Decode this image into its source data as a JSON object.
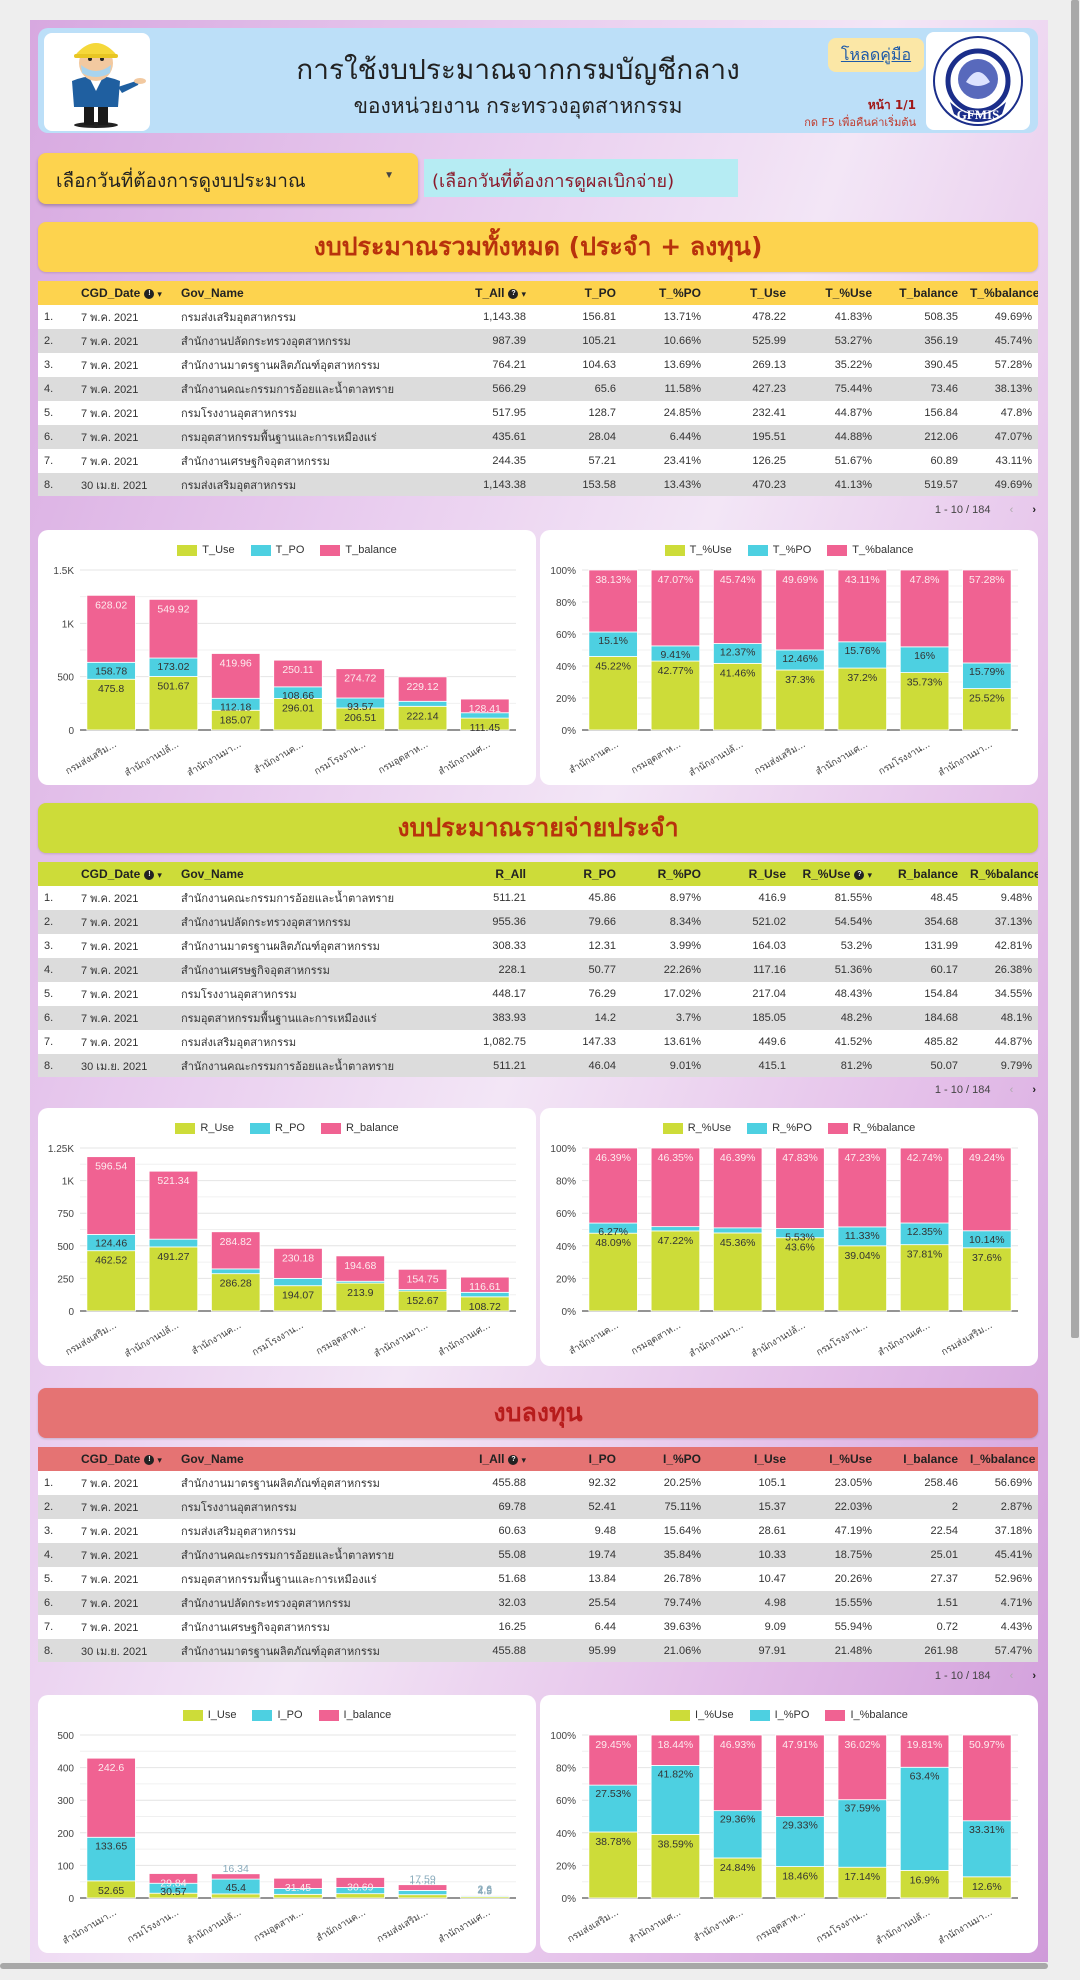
{
  "header": {
    "title": "การใช้งบประมาณจากกรมบัญชีกลาง",
    "subtitle": "ของหน่วยงาน กระทรวงอุตสาหกรรม",
    "manual_link": "โหลดคู่มือ",
    "page_indicator": "หน้า 1/1",
    "reset_hint": "กด F5 เพื่อคืนค่าเริ่มต้น",
    "logo_text": "GFMIS",
    "logo_ring_text": "GOVERNMENT FISCAL MANAGEMENT INFORMATION SYSTEM"
  },
  "filters": {
    "date_selector_label": "เลือกวันที่ต้องการดูงบประมาณ",
    "disbursement_label": "(เลือกวันที่ต้องการดูผลเบิกจ่าย)"
  },
  "colors": {
    "use": "#cddc39",
    "po": "#4dd0e1",
    "balance": "#f06292",
    "yellow_section": "#fdd34e",
    "lime_section": "#cddc39",
    "red_section": "#e57373"
  },
  "sections": [
    {
      "title": "งบประมาณรวมทั้งหมด (ประจำ + ลงทุน)",
      "table": {
        "columns": [
          "",
          "CGD_Date",
          "Gov_Name",
          "T_All",
          "T_PO",
          "T_%PO",
          "T_Use",
          "T_%Use",
          "T_balance",
          "T_%balance"
        ],
        "rows": [
          [
            "1.",
            "7 พ.ค. 2021",
            "กรมส่งเสริมอุตสาหกรรม",
            "1,143.38",
            "156.81",
            "13.71%",
            "478.22",
            "41.83%",
            "508.35",
            "49.69%"
          ],
          [
            "2.",
            "7 พ.ค. 2021",
            "สำนักงานปลัดกระทรวงอุตสาหกรรม",
            "987.39",
            "105.21",
            "10.66%",
            "525.99",
            "53.27%",
            "356.19",
            "45.74%"
          ],
          [
            "3.",
            "7 พ.ค. 2021",
            "สำนักงานมาตรฐานผลิตภัณฑ์อุตสาหกรรม",
            "764.21",
            "104.63",
            "13.69%",
            "269.13",
            "35.22%",
            "390.45",
            "57.28%"
          ],
          [
            "4.",
            "7 พ.ค. 2021",
            "สำนักงานคณะกรรมการอ้อยและน้ำตาลทราย",
            "566.29",
            "65.6",
            "11.58%",
            "427.23",
            "75.44%",
            "73.46",
            "38.13%"
          ],
          [
            "5.",
            "7 พ.ค. 2021",
            "กรมโรงงานอุตสาหกรรม",
            "517.95",
            "128.7",
            "24.85%",
            "232.41",
            "44.87%",
            "156.84",
            "47.8%"
          ],
          [
            "6.",
            "7 พ.ค. 2021",
            "กรมอุตสาหกรรมพื้นฐานและการเหมืองแร่",
            "435.61",
            "28.04",
            "6.44%",
            "195.51",
            "44.88%",
            "212.06",
            "47.07%"
          ],
          [
            "7.",
            "7 พ.ค. 2021",
            "สำนักงานเศรษฐกิจอุตสาหกรรม",
            "244.35",
            "57.21",
            "23.41%",
            "126.25",
            "51.67%",
            "60.89",
            "43.11%"
          ],
          [
            "8.",
            "30 เม.ย. 2021",
            "กรมส่งเสริมอุตสาหกรรม",
            "1,143.38",
            "153.58",
            "13.43%",
            "470.23",
            "41.13%",
            "519.57",
            "49.69%"
          ]
        ],
        "info_cols": [
          1,
          3
        ],
        "pagination": "1 - 10 / 184"
      }
    },
    {
      "title": "งบประมาณรายจ่ายประจำ",
      "table": {
        "columns": [
          "",
          "CGD_Date",
          "Gov_Name",
          "R_All",
          "R_PO",
          "R_%PO",
          "R_Use",
          "R_%Use",
          "R_balance",
          "R_%balance"
        ],
        "rows": [
          [
            "1.",
            "7 พ.ค. 2021",
            "สำนักงานคณะกรรมการอ้อยและน้ำตาลทราย",
            "511.21",
            "45.86",
            "8.97%",
            "416.9",
            "81.55%",
            "48.45",
            "9.48%"
          ],
          [
            "2.",
            "7 พ.ค. 2021",
            "สำนักงานปลัดกระทรวงอุตสาหกรรม",
            "955.36",
            "79.66",
            "8.34%",
            "521.02",
            "54.54%",
            "354.68",
            "37.13%"
          ],
          [
            "3.",
            "7 พ.ค. 2021",
            "สำนักงานมาตรฐานผลิตภัณฑ์อุตสาหกรรม",
            "308.33",
            "12.31",
            "3.99%",
            "164.03",
            "53.2%",
            "131.99",
            "42.81%"
          ],
          [
            "4.",
            "7 พ.ค. 2021",
            "สำนักงานเศรษฐกิจอุตสาหกรรม",
            "228.1",
            "50.77",
            "22.26%",
            "117.16",
            "51.36%",
            "60.17",
            "26.38%"
          ],
          [
            "5.",
            "7 พ.ค. 2021",
            "กรมโรงงานอุตสาหกรรม",
            "448.17",
            "76.29",
            "17.02%",
            "217.04",
            "48.43%",
            "154.84",
            "34.55%"
          ],
          [
            "6.",
            "7 พ.ค. 2021",
            "กรมอุตสาหกรรมพื้นฐานและการเหมืองแร่",
            "383.93",
            "14.2",
            "3.7%",
            "185.05",
            "48.2%",
            "184.68",
            "48.1%"
          ],
          [
            "7.",
            "7 พ.ค. 2021",
            "กรมส่งเสริมอุตสาหกรรม",
            "1,082.75",
            "147.33",
            "13.61%",
            "449.6",
            "41.52%",
            "485.82",
            "44.87%"
          ],
          [
            "8.",
            "30 เม.ย. 2021",
            "สำนักงานคณะกรรมการอ้อยและน้ำตาลทราย",
            "511.21",
            "46.04",
            "9.01%",
            "415.1",
            "81.2%",
            "50.07",
            "9.79%"
          ]
        ],
        "info_cols": [
          1,
          7
        ],
        "pagination": "1 - 10 / 184"
      }
    },
    {
      "title": "งบลงทุน",
      "table": {
        "columns": [
          "",
          "CGD_Date",
          "Gov_Name",
          "I_All",
          "I_PO",
          "I_%PO",
          "I_Use",
          "I_%Use",
          "I_balance",
          "I_%balance"
        ],
        "rows": [
          [
            "1.",
            "7 พ.ค. 2021",
            "สำนักงานมาตรฐานผลิตภัณฑ์อุตสาหกรรม",
            "455.88",
            "92.32",
            "20.25%",
            "105.1",
            "23.05%",
            "258.46",
            "56.69%"
          ],
          [
            "2.",
            "7 พ.ค. 2021",
            "กรมโรงงานอุตสาหกรรม",
            "69.78",
            "52.41",
            "75.11%",
            "15.37",
            "22.03%",
            "2",
            "2.87%"
          ],
          [
            "3.",
            "7 พ.ค. 2021",
            "กรมส่งเสริมอุตสาหกรรม",
            "60.63",
            "9.48",
            "15.64%",
            "28.61",
            "47.19%",
            "22.54",
            "37.18%"
          ],
          [
            "4.",
            "7 พ.ค. 2021",
            "สำนักงานคณะกรรมการอ้อยและน้ำตาลทราย",
            "55.08",
            "19.74",
            "35.84%",
            "10.33",
            "18.75%",
            "25.01",
            "45.41%"
          ],
          [
            "5.",
            "7 พ.ค. 2021",
            "กรมอุตสาหกรรมพื้นฐานและการเหมืองแร่",
            "51.68",
            "13.84",
            "26.78%",
            "10.47",
            "20.26%",
            "27.37",
            "52.96%"
          ],
          [
            "6.",
            "7 พ.ค. 2021",
            "สำนักงานปลัดกระทรวงอุตสาหกรรม",
            "32.03",
            "25.54",
            "79.74%",
            "4.98",
            "15.55%",
            "1.51",
            "4.71%"
          ],
          [
            "7.",
            "7 พ.ค. 2021",
            "สำนักงานเศรษฐกิจอุตสาหกรรม",
            "16.25",
            "6.44",
            "39.63%",
            "9.09",
            "55.94%",
            "0.72",
            "4.43%"
          ],
          [
            "8.",
            "30 เม.ย. 2021",
            "สำนักงานมาตรฐานผลิตภัณฑ์อุตสาหกรรม",
            "455.88",
            "95.99",
            "21.06%",
            "97.91",
            "21.48%",
            "261.98",
            "57.47%"
          ]
        ],
        "info_cols": [
          1,
          3
        ],
        "pagination": "1 - 10 / 184"
      }
    }
  ],
  "chart_data": [
    {
      "type": "bar",
      "stacked": true,
      "title": "",
      "categories": [
        "กรมส่งเสริม...",
        "สำนักงานปลั...",
        "สำนักงานมา...",
        "สำนักงานค...",
        "กรมโรงงาน...",
        "กรมอุตสาห...",
        "สำนักงานเศ..."
      ],
      "series": [
        {
          "name": "T_Use",
          "values": [
            475.8,
            501.67,
            185.07,
            296.01,
            206.51,
            222.14,
            111.45
          ]
        },
        {
          "name": "T_PO",
          "values": [
            158.78,
            173.02,
            112.18,
            108.66,
            93.57,
            47.02,
            50.37
          ]
        },
        {
          "name": "T_balance",
          "values": [
            628.02,
            549.92,
            419.96,
            250.11,
            274.72,
            229.12,
            128.41
          ]
        }
      ],
      "yticks": [
        "0",
        "500",
        "1K",
        "1.5K"
      ],
      "ylim": [
        0,
        1500
      ],
      "legend": "top",
      "grid": true
    },
    {
      "type": "bar",
      "stacked": true,
      "percent": true,
      "categories": [
        "สำนักงานค...",
        "กรมอุตสาห...",
        "สำนักงานปลั...",
        "กรมส่งเสริม...",
        "สำนักงานเศ...",
        "กรมโรงงาน...",
        "สำนักงานมา..."
      ],
      "series": [
        {
          "name": "T_%Use",
          "values": [
            45.22,
            42.77,
            41.46,
            37.3,
            37.2,
            35.73,
            25.52
          ]
        },
        {
          "name": "T_%PO",
          "values": [
            15.1,
            9.41,
            12.37,
            12.46,
            15.76,
            16,
            15.79
          ]
        },
        {
          "name": "T_%balance",
          "values": [
            38.13,
            47.07,
            45.74,
            49.69,
            43.11,
            47.8,
            57.28
          ]
        }
      ],
      "yticks": [
        "0%",
        "20%",
        "40%",
        "60%",
        "80%",
        "100%"
      ],
      "ylim": [
        0,
        100
      ],
      "legend": "top",
      "grid": true
    },
    {
      "type": "bar",
      "stacked": true,
      "categories": [
        "กรมส่งเสริม...",
        "สำนักงานปลั...",
        "สำนักงานค...",
        "กรมโรงงาน...",
        "กรมอุตสาห...",
        "สำนักงานมา...",
        "สำนักงานเศ..."
      ],
      "series": [
        {
          "name": "R_Use",
          "values": [
            462.52,
            491.27,
            286.28,
            194.07,
            213.9,
            152.67,
            108.72
          ]
        },
        {
          "name": "R_PO",
          "values": [
            124.46,
            59.56,
            36.52,
            56.03,
            14.2,
            12.31,
            34.57
          ]
        },
        {
          "name": "R_balance",
          "values": [
            596.54,
            521.34,
            284.82,
            230.18,
            194.68,
            154.75,
            116.61
          ]
        }
      ],
      "yticks": [
        "0",
        "250",
        "500",
        "750",
        "1K",
        "1.25K"
      ],
      "ylim": [
        0,
        1250
      ],
      "legend": "top",
      "grid": true
    },
    {
      "type": "bar",
      "stacked": true,
      "percent": true,
      "categories": [
        "สำนักงานค...",
        "กรมอุตสาห...",
        "สำนักงานมา...",
        "สำนักงานปลั...",
        "กรมโรงงาน...",
        "สำนักงานเศ...",
        "กรมส่งเสริม..."
      ],
      "series": [
        {
          "name": "R_%Use",
          "values": [
            48.09,
            47.22,
            45.36,
            43.6,
            39.04,
            37.81,
            37.6
          ]
        },
        {
          "name": "R_%PO",
          "values": [
            6.27,
            2.52,
            2.97,
            5.53,
            11.33,
            12.35,
            10.14
          ]
        },
        {
          "name": "R_%balance",
          "values": [
            46.39,
            46.35,
            46.39,
            47.83,
            47.23,
            42.74,
            49.24
          ]
        }
      ],
      "yticks": [
        "0%",
        "20%",
        "40%",
        "60%",
        "80%",
        "100%"
      ],
      "ylim": [
        0,
        100
      ],
      "legend": "top",
      "grid": true
    },
    {
      "type": "bar",
      "stacked": true,
      "categories": [
        "สำนักงานมา...",
        "กรมโรงงาน...",
        "สำนักงานปลั...",
        "กรมอุตสาห...",
        "สำนักงานค...",
        "กรมส่งเสริม...",
        "สำนักงานเศ..."
      ],
      "series": [
        {
          "name": "I_Use",
          "values": [
            52.65,
            14.7,
            12.59,
            11.28,
            13.31,
            10.16,
            4.5
          ]
        },
        {
          "name": "I_PO",
          "values": [
            133.65,
            30.57,
            45.4,
            18.01,
            19.01,
            13.08,
            2.9
          ]
        },
        {
          "name": "I_balance",
          "values": [
            242.6,
            29.84,
            16.34,
            31.45,
            30.69,
            17.59,
            2.6
          ]
        }
      ],
      "yticks": [
        "0",
        "100",
        "200",
        "300",
        "400",
        "500"
      ],
      "ylim": [
        0,
        500
      ],
      "legend": "top",
      "grid": true
    },
    {
      "type": "bar",
      "stacked": true,
      "percent": true,
      "categories": [
        "กรมส่งเสริม...",
        "สำนักงานเศ...",
        "สำนักงานค...",
        "กรมอุตสาห...",
        "กรมโรงงาน...",
        "สำนักงานปลั...",
        "สำนักงานมา..."
      ],
      "series": [
        {
          "name": "I_%Use",
          "values": [
            38.78,
            38.59,
            24.84,
            18.46,
            17.14,
            16.9,
            12.6
          ]
        },
        {
          "name": "I_%PO",
          "values": [
            27.53,
            41.82,
            29.36,
            29.33,
            37.59,
            63.4,
            33.31
          ]
        },
        {
          "name": "I_%balance",
          "values": [
            29.45,
            18.44,
            46.93,
            47.91,
            36.02,
            19.81,
            50.97
          ]
        }
      ],
      "yticks": [
        "0%",
        "20%",
        "40%",
        "60%",
        "80%",
        "100%"
      ],
      "ylim": [
        0,
        100
      ],
      "legend": "top",
      "grid": true
    }
  ]
}
